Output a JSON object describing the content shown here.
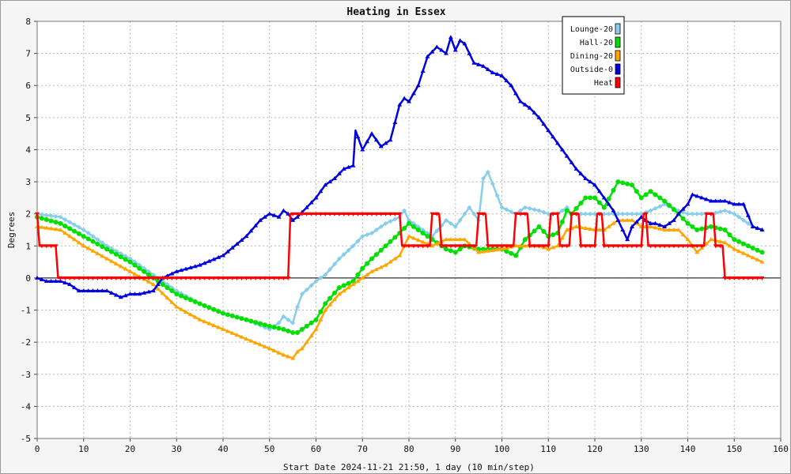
{
  "chart_data": {
    "type": "line",
    "title": "Heating in Essex",
    "xlabel": "Start Date 2024-11-21 21:50, 1 day (10 min/step)",
    "ylabel": "Degrees",
    "xlim": [
      0,
      160
    ],
    "ylim": [
      -5,
      8
    ],
    "xticks": [
      0,
      10,
      20,
      30,
      40,
      50,
      60,
      70,
      80,
      90,
      100,
      110,
      120,
      130,
      140,
      150,
      160
    ],
    "yticks": [
      -5,
      -4,
      -3,
      -2,
      -1,
      0,
      1,
      2,
      3,
      4,
      5,
      6,
      7,
      8
    ],
    "grid": true,
    "legend_position": "top-right",
    "series": [
      {
        "name": "Lounge-20",
        "color": "#87ceeb",
        "marker": "diamond",
        "x": [
          0,
          5,
          10,
          15,
          20,
          25,
          30,
          35,
          40,
          45,
          50,
          52,
          53,
          55,
          56,
          57,
          60,
          62,
          65,
          68,
          70,
          72,
          75,
          78,
          79,
          80,
          85,
          88,
          90,
          92,
          93,
          95,
          96,
          97,
          100,
          103,
          105,
          108,
          110,
          112,
          114,
          115,
          120,
          125,
          130,
          132,
          135,
          138,
          140,
          145,
          148,
          150,
          154,
          156
        ],
        "y": [
          2.0,
          1.9,
          1.5,
          1.0,
          0.6,
          0.1,
          -0.4,
          -0.8,
          -1.1,
          -1.3,
          -1.6,
          -1.4,
          -1.2,
          -1.4,
          -0.9,
          -0.5,
          -0.1,
          0.1,
          0.6,
          1.0,
          1.3,
          1.4,
          1.7,
          1.9,
          2.1,
          1.8,
          1.3,
          1.8,
          1.6,
          2.0,
          2.2,
          1.8,
          3.1,
          3.3,
          2.2,
          2.0,
          2.2,
          2.1,
          2.0,
          2.0,
          2.2,
          2.0,
          2.0,
          2.0,
          2.0,
          2.1,
          2.3,
          2.1,
          2.0,
          2.0,
          2.1,
          2.0,
          1.6,
          1.5
        ]
      },
      {
        "name": "Hall-20",
        "color": "#00e000",
        "marker": "circle",
        "x": [
          0,
          5,
          10,
          15,
          20,
          25,
          30,
          35,
          40,
          45,
          50,
          53,
          55,
          56,
          57,
          60,
          62,
          65,
          68,
          70,
          72,
          75,
          78,
          80,
          85,
          88,
          90,
          92,
          95,
          100,
          103,
          105,
          108,
          110,
          112,
          114,
          115,
          118,
          120,
          122,
          125,
          128,
          130,
          132,
          135,
          138,
          140,
          142,
          145,
          148,
          150,
          153,
          156
        ],
        "y": [
          1.9,
          1.7,
          1.3,
          0.9,
          0.5,
          0.0,
          -0.5,
          -0.8,
          -1.1,
          -1.3,
          -1.5,
          -1.6,
          -1.7,
          -1.7,
          -1.6,
          -1.3,
          -0.8,
          -0.3,
          -0.1,
          0.3,
          0.6,
          1.0,
          1.4,
          1.7,
          1.2,
          0.9,
          0.8,
          1.0,
          0.9,
          0.9,
          0.7,
          1.2,
          1.6,
          1.3,
          1.4,
          2.1,
          2.0,
          2.5,
          2.5,
          2.2,
          3.0,
          2.9,
          2.5,
          2.7,
          2.4,
          2.0,
          1.7,
          1.5,
          1.6,
          1.5,
          1.2,
          1.0,
          0.8
        ]
      },
      {
        "name": "Dining-20",
        "color": "#ffa500",
        "marker": "triangle",
        "x": [
          0,
          5,
          10,
          15,
          20,
          25,
          30,
          35,
          40,
          45,
          50,
          53,
          55,
          56,
          57,
          60,
          62,
          65,
          68,
          70,
          72,
          75,
          78,
          80,
          85,
          88,
          90,
          92,
          95,
          100,
          103,
          105,
          108,
          110,
          112,
          114,
          116,
          120,
          122,
          125,
          128,
          130,
          132,
          135,
          138,
          140,
          142,
          145,
          148,
          150,
          153,
          156
        ],
        "y": [
          1.6,
          1.5,
          1.0,
          0.6,
          0.2,
          -0.2,
          -0.9,
          -1.3,
          -1.6,
          -1.9,
          -2.2,
          -2.4,
          -2.5,
          -2.3,
          -2.2,
          -1.6,
          -1.0,
          -0.5,
          -0.2,
          0.0,
          0.2,
          0.4,
          0.7,
          1.3,
          1.0,
          1.2,
          1.2,
          1.2,
          0.8,
          0.9,
          1.0,
          1.0,
          1.0,
          0.9,
          1.0,
          1.5,
          1.6,
          1.5,
          1.5,
          1.8,
          1.8,
          1.6,
          1.6,
          1.5,
          1.5,
          1.2,
          0.8,
          1.2,
          1.1,
          0.9,
          0.7,
          0.5
        ]
      },
      {
        "name": "Outside-0",
        "color": "#0000dd",
        "marker": "triangle",
        "x": [
          0,
          2,
          3,
          5,
          7,
          9,
          12,
          15,
          18,
          20,
          22,
          25,
          27,
          30,
          35,
          40,
          45,
          48,
          50,
          52,
          53,
          54,
          55,
          56,
          58,
          60,
          62,
          64,
          66,
          68,
          68.5,
          70,
          72,
          74,
          76,
          78,
          79,
          80,
          82,
          84,
          86,
          88,
          89,
          90,
          91,
          92,
          94,
          96,
          98,
          100,
          102,
          104,
          106,
          108,
          110,
          112,
          114,
          116,
          118,
          120,
          122,
          124,
          126,
          127,
          128,
          130,
          132,
          133,
          135,
          137,
          138,
          140,
          141,
          143,
          145,
          148,
          150,
          152,
          154,
          156
        ],
        "y": [
          0.0,
          -0.1,
          -0.1,
          -0.1,
          -0.2,
          -0.4,
          -0.4,
          -0.4,
          -0.6,
          -0.5,
          -0.5,
          -0.4,
          0.0,
          0.2,
          0.4,
          0.7,
          1.3,
          1.8,
          2.0,
          1.9,
          2.1,
          2.0,
          1.8,
          1.9,
          2.2,
          2.5,
          2.9,
          3.1,
          3.4,
          3.5,
          4.6,
          4.0,
          4.5,
          4.1,
          4.3,
          5.4,
          5.6,
          5.5,
          6.0,
          6.9,
          7.2,
          7.0,
          7.5,
          7.1,
          7.4,
          7.3,
          6.7,
          6.6,
          6.4,
          6.3,
          6.0,
          5.5,
          5.3,
          5.0,
          4.6,
          4.2,
          3.8,
          3.4,
          3.1,
          2.9,
          2.5,
          2.1,
          1.5,
          1.2,
          1.6,
          1.9,
          1.7,
          1.7,
          1.6,
          1.8,
          2.0,
          2.3,
          2.6,
          2.5,
          2.4,
          2.4,
          2.3,
          2.3,
          1.6,
          1.5
        ]
      },
      {
        "name": "Heat",
        "color": "#ff0000",
        "marker": "triangle-down",
        "x": [
          0,
          0.5,
          4,
          4.5,
          54,
          54.5,
          78,
          78.5,
          84.5,
          85,
          86.5,
          87,
          94.5,
          95,
          96.5,
          97,
          102.5,
          103,
          105.5,
          106,
          110,
          110.5,
          112,
          112.5,
          114.5,
          115,
          116.5,
          117,
          120,
          120.5,
          121.5,
          122,
          130,
          130.5,
          131,
          131.5,
          143.5,
          144,
          145.5,
          146,
          147.5,
          148,
          156
        ],
        "y": [
          2,
          1,
          1,
          0,
          0,
          2,
          2,
          1,
          1,
          2,
          2,
          1,
          1,
          2,
          2,
          1,
          1,
          2,
          2,
          1,
          1,
          2,
          2,
          1,
          1,
          2,
          2,
          1,
          1,
          2,
          2,
          1,
          1,
          2,
          2,
          1,
          1,
          2,
          2,
          1,
          1,
          0,
          0
        ]
      }
    ]
  }
}
